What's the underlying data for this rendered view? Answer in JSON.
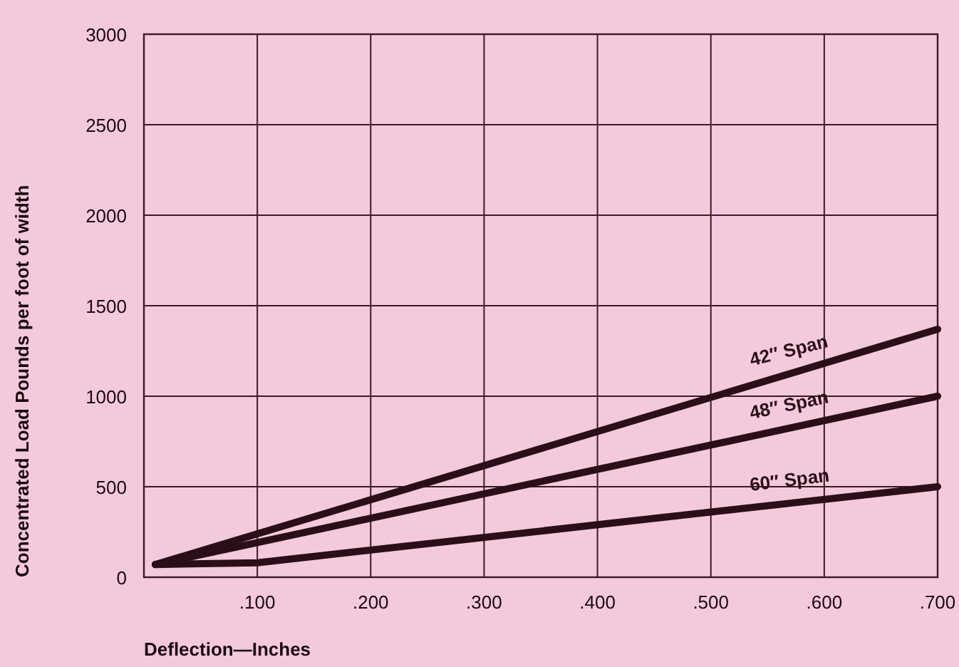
{
  "chart_data": {
    "type": "line",
    "xlabel": "Deflection—Inches",
    "ylabel": "Concentrated Load Pounds per foot of width",
    "xlim": [
      0,
      0.7
    ],
    "xticks": [
      {
        "value": 0.1,
        "label": ".100"
      },
      {
        "value": 0.2,
        "label": ".200"
      },
      {
        "value": 0.3,
        "label": ".300"
      },
      {
        "value": 0.4,
        "label": ".400"
      },
      {
        "value": 0.5,
        "label": ".500"
      },
      {
        "value": 0.6,
        "label": ".600"
      },
      {
        "value": 0.7,
        "label": ".700"
      }
    ],
    "ylim": [
      0,
      3000
    ],
    "yticks": [
      0,
      500,
      1000,
      1500,
      2000,
      2500,
      3000
    ],
    "grid": true,
    "marker": "none",
    "line_style": "solid",
    "series": [
      {
        "name": "42″ Span",
        "color": "#2a0f18",
        "x": [
          0.01,
          0.7
        ],
        "values": [
          70,
          1370
        ]
      },
      {
        "name": "48″ Span",
        "color": "#2a0f18",
        "x": [
          0.01,
          0.7
        ],
        "values": [
          70,
          1000
        ]
      },
      {
        "name": "60″ Span",
        "color": "#2a0f18",
        "x": [
          0.01,
          0.1,
          0.7
        ],
        "values": [
          70,
          80,
          500
        ]
      }
    ]
  }
}
